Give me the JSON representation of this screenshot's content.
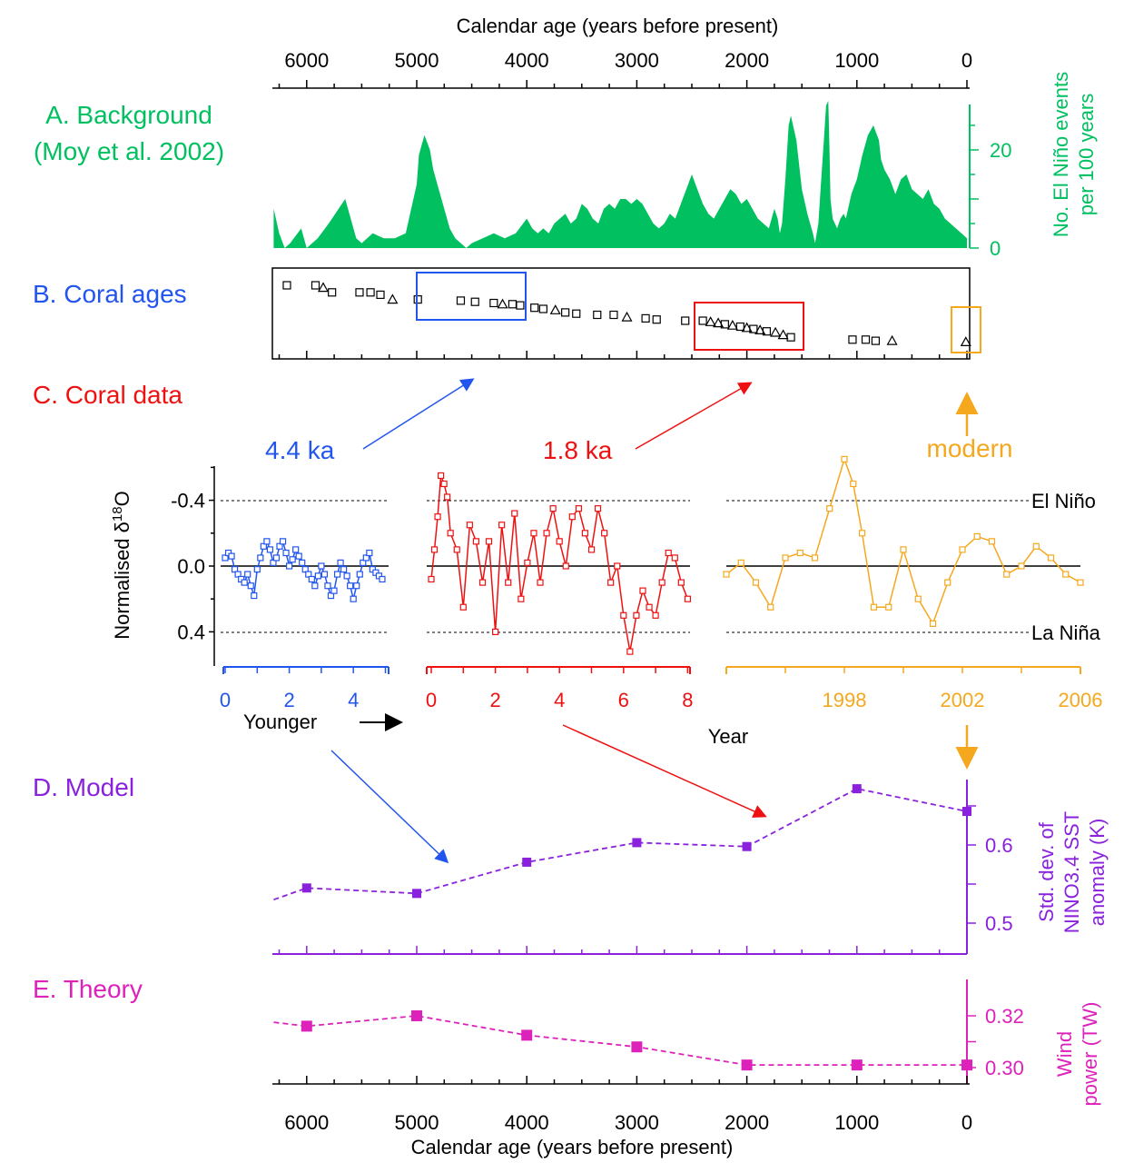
{
  "colors": {
    "green": "#00c060",
    "blue": "#2255ee",
    "red": "#ee1111",
    "orange": "#f5a81e",
    "purple": "#8a22dd",
    "magenta": "#dd22bb",
    "black": "#000000"
  },
  "top_axis": {
    "label": "Calendar age (years before present)",
    "ticks": [
      "6000",
      "5000",
      "4000",
      "3000",
      "2000",
      "1000",
      "0"
    ]
  },
  "bottom_axis": {
    "label": "Calendar age (years before present)",
    "ticks": [
      "6000",
      "5000",
      "4000",
      "3000",
      "2000",
      "1000",
      "0"
    ]
  },
  "panel_a": {
    "title_line1": "A. Background",
    "title_line2": "(Moy et al. 2002)",
    "ylabel_line1": "No. El Niño events",
    "ylabel_line2": "per 100 years",
    "yticks": [
      "0",
      "20"
    ]
  },
  "panel_b": {
    "title": "B. Coral ages"
  },
  "panel_c": {
    "title": "C. Coral data",
    "ylabel": "Normalised δ18O",
    "yticks": [
      "-0.4",
      "0.0",
      "0.4"
    ],
    "label_4ka": "4.4 ka",
    "label_18ka": "1.8 ka",
    "label_modern": "modern",
    "el_nino": "El Niño",
    "la_nina": "La Niña",
    "younger": "Younger",
    "year": "Year",
    "blue_ticks": [
      "0",
      "2",
      "4"
    ],
    "red_ticks": [
      "0",
      "2",
      "4",
      "6",
      "8"
    ],
    "orange_ticks": [
      "1998",
      "2002",
      "2006"
    ]
  },
  "panel_d": {
    "title": "D. Model",
    "ylabel_line1": "Std. dev. of",
    "ylabel_line2": "NINO3.4 SST",
    "ylabel_line3": "anomaly (K)",
    "yticks": [
      "0.5",
      "0.6"
    ]
  },
  "panel_e": {
    "title": "E. Theory",
    "ylabel_line1": "Wind",
    "ylabel_line2": "power (TW)",
    "yticks": [
      "0.30",
      "0.32"
    ]
  },
  "chart_data": [
    {
      "type": "area",
      "panel": "A",
      "series": [
        {
          "name": "",
          "x": [
            6300,
            6250,
            6200,
            6150,
            6050,
            6000,
            5900,
            5800,
            5650,
            5550,
            5500,
            5400,
            5300,
            5200,
            5100,
            5050,
            5000,
            4980,
            4930,
            4880,
            4850,
            4800,
            4750,
            4700,
            4650,
            4600,
            4550,
            4500,
            4400,
            4300,
            4200,
            4100,
            4000,
            3950,
            3900,
            3850,
            3800,
            3750,
            3700,
            3650,
            3600,
            3550,
            3500,
            3450,
            3400,
            3350,
            3300,
            3250,
            3200,
            3150,
            3100,
            3050,
            3000,
            2950,
            2900,
            2850,
            2800,
            2750,
            2700,
            2650,
            2600,
            2550,
            2500,
            2450,
            2400,
            2350,
            2300,
            2250,
            2200,
            2150,
            2100,
            2050,
            2000,
            1950,
            1900,
            1850,
            1800,
            1750,
            1720,
            1700,
            1680,
            1650,
            1620,
            1600,
            1550,
            1500,
            1450,
            1400,
            1380,
            1350,
            1330,
            1300,
            1280,
            1260,
            1250,
            1240,
            1220,
            1200,
            1180,
            1150,
            1120,
            1100,
            1080,
            1050,
            1000,
            950,
            900,
            850,
            800,
            780,
            750,
            700,
            650,
            600,
            550,
            500,
            450,
            400,
            350,
            300,
            250,
            200,
            150,
            100,
            50,
            0
          ],
          "y": [
            8,
            3,
            0,
            1,
            4,
            0,
            2,
            5,
            10,
            2,
            1,
            3,
            2,
            2,
            3,
            8,
            13,
            19,
            23,
            20,
            16,
            12,
            8,
            4,
            2,
            1,
            0,
            1,
            2,
            3,
            2,
            3,
            6,
            4,
            3,
            4,
            3,
            5,
            6,
            7,
            5,
            6,
            9,
            8,
            6,
            5,
            8,
            9,
            8,
            10,
            10,
            9,
            10,
            9,
            7,
            5,
            4,
            5,
            7,
            6,
            9,
            12,
            15,
            12,
            9,
            7,
            6,
            8,
            10,
            12,
            11,
            9,
            10,
            8,
            6,
            5,
            4,
            8,
            6,
            3,
            5,
            14,
            25,
            27,
            22,
            12,
            7,
            3,
            1,
            5,
            12,
            22,
            29,
            30,
            21,
            10,
            6,
            5,
            4,
            6,
            7,
            6,
            8,
            11,
            14,
            19,
            23,
            25,
            22,
            18,
            16,
            14,
            11,
            14,
            15,
            12,
            11,
            10,
            12,
            9,
            8,
            6,
            5,
            4,
            3,
            2
          ]
        }
      ],
      "ylim": [
        0,
        30
      ],
      "xlim": [
        6300,
        0
      ]
    },
    {
      "type": "scatter",
      "panel": "B",
      "series": [
        {
          "name": "",
          "x": [
            6180,
            5920,
            5850,
            5770,
            5520,
            5420,
            5330,
            5220,
            4990,
            4600,
            4470,
            4300,
            4220,
            4130,
            4060,
            3930,
            3850,
            3740,
            3650,
            3550,
            3360,
            3210,
            3090,
            2920,
            2820,
            2560,
            2400,
            2330,
            2260,
            2200,
            2130,
            2060,
            2000,
            1940,
            1880,
            1820,
            1740,
            1670,
            1600,
            1040,
            920,
            830,
            680,
            10
          ],
          "y": [
            0,
            0,
            0.2,
            0.6,
            0.6,
            0.6,
            0.8,
            1.2,
            1.2,
            1.3,
            1.4,
            1.5,
            1.6,
            1.6,
            1.7,
            1.9,
            2.0,
            2.1,
            2.3,
            2.4,
            2.5,
            2.5,
            2.7,
            2.8,
            2.9,
            3.0,
            3.0,
            3.1,
            3.2,
            3.3,
            3.4,
            3.5,
            3.6,
            3.7,
            3.8,
            3.9,
            4.0,
            4.2,
            4.4,
            4.6,
            4.6,
            4.7,
            4.7,
            4.8
          ]
        }
      ]
    },
    {
      "type": "line",
      "panel": "C",
      "name": "4.4 ka",
      "x": [
        0,
        0.1,
        0.2,
        0.3,
        0.4,
        0.5,
        0.6,
        0.7,
        0.8,
        0.9,
        1.0,
        1.1,
        1.2,
        1.3,
        1.4,
        1.5,
        1.6,
        1.7,
        1.8,
        1.9,
        2.0,
        2.1,
        2.2,
        2.3,
        2.4,
        2.5,
        2.6,
        2.7,
        2.8,
        2.9,
        3.0,
        3.1,
        3.2,
        3.3,
        3.4,
        3.5,
        3.6,
        3.7,
        3.8,
        3.9,
        4.0,
        4.1,
        4.2,
        4.3,
        4.4,
        4.5,
        4.6,
        4.7,
        4.8,
        4.9
      ],
      "y": [
        -0.05,
        -0.08,
        -0.06,
        0.02,
        0.05,
        0.08,
        0.1,
        0.05,
        0.12,
        0.18,
        0.02,
        -0.05,
        -0.12,
        -0.15,
        -0.1,
        -0.02,
        -0.05,
        -0.12,
        -0.15,
        -0.08,
        0.0,
        -0.04,
        -0.1,
        -0.06,
        -0.02,
        0.02,
        0.05,
        0.08,
        0.12,
        0.06,
        0.0,
        0.05,
        0.12,
        0.18,
        0.15,
        0.05,
        -0.02,
        0.02,
        0.06,
        0.12,
        0.2,
        0.12,
        0.05,
        -0.02,
        -0.05,
        -0.08,
        0.02,
        0.04,
        0.06,
        0.08
      ]
    },
    {
      "type": "line",
      "panel": "C",
      "name": "1.8 ka",
      "x": [
        0,
        0.1,
        0.2,
        0.3,
        0.4,
        0.5,
        0.6,
        0.8,
        1.0,
        1.2,
        1.4,
        1.6,
        1.8,
        2.0,
        2.2,
        2.4,
        2.6,
        2.8,
        3.0,
        3.2,
        3.4,
        3.6,
        3.8,
        4.0,
        4.2,
        4.4,
        4.6,
        4.8,
        5.0,
        5.2,
        5.4,
        5.6,
        5.8,
        6.0,
        6.2,
        6.4,
        6.6,
        6.8,
        7.0,
        7.2,
        7.4,
        7.6,
        7.8,
        8.0
      ],
      "y": [
        0.08,
        -0.1,
        -0.3,
        -0.55,
        -0.5,
        -0.42,
        -0.2,
        -0.1,
        0.25,
        -0.25,
        -0.15,
        0.1,
        -0.15,
        0.4,
        -0.25,
        0.1,
        -0.32,
        0.2,
        -0.02,
        -0.2,
        0.1,
        -0.2,
        -0.35,
        -0.15,
        0.0,
        -0.3,
        -0.35,
        -0.2,
        -0.1,
        -0.35,
        -0.2,
        0.1,
        0.0,
        0.3,
        0.52,
        0.3,
        0.15,
        0.25,
        0.3,
        0.1,
        -0.08,
        -0.05,
        0.1,
        0.2
      ]
    },
    {
      "type": "line",
      "panel": "C",
      "name": "modern",
      "x": [
        1994,
        1994.5,
        1995,
        1995.5,
        1996,
        1996.5,
        1997,
        1997.5,
        1998,
        1998.3,
        1998.6,
        1999,
        1999.5,
        2000,
        2000.5,
        2001,
        2001.5,
        2002,
        2002.5,
        2003,
        2003.5,
        2004,
        2004.5,
        2005,
        2005.5,
        2006
      ],
      "y": [
        0.05,
        -0.02,
        0.1,
        0.25,
        -0.05,
        -0.08,
        -0.05,
        -0.35,
        -0.65,
        -0.5,
        -0.2,
        0.25,
        0.25,
        -0.1,
        0.2,
        0.35,
        0.1,
        -0.1,
        -0.18,
        -0.15,
        0.05,
        0.0,
        -0.12,
        -0.05,
        0.05,
        0.1
      ]
    },
    {
      "type": "line",
      "panel": "D",
      "x": [
        6300,
        6000,
        5000,
        4000,
        3000,
        2000,
        1000,
        0
      ],
      "y": [
        0.53,
        0.545,
        0.538,
        0.578,
        0.603,
        0.598,
        0.672,
        0.643
      ],
      "ylim": [
        0.45,
        0.7
      ]
    },
    {
      "type": "line",
      "panel": "E",
      "x": [
        6300,
        6000,
        5000,
        4000,
        3000,
        2000,
        1000,
        0
      ],
      "y": [
        0.3175,
        0.316,
        0.32,
        0.3125,
        0.308,
        0.301,
        0.301,
        0.301
      ],
      "ylim": [
        0.295,
        0.325
      ]
    }
  ]
}
